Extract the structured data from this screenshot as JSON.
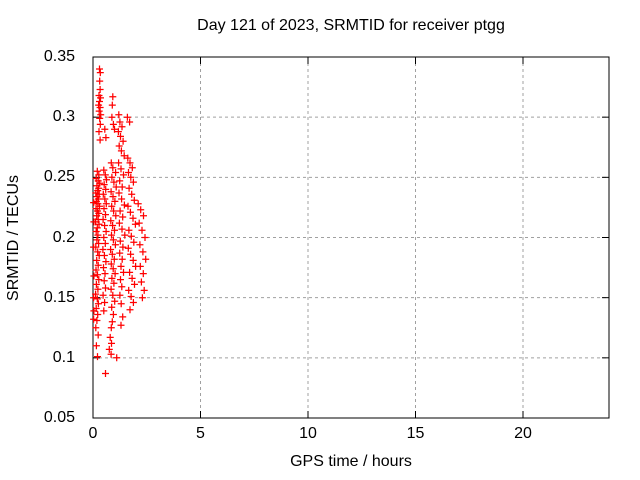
{
  "title": "Day 121 of 2023, SRMTID for receiver ptgg",
  "chart_data": {
    "type": "scatter",
    "title": "Day 121 of 2023, SRMTID for receiver ptgg",
    "xlabel": "GPS time / hours",
    "ylabel": "SRMTID / TECUs",
    "xlim": [
      0,
      24
    ],
    "ylim": [
      0.05,
      0.35
    ],
    "xticks": [
      0,
      5,
      10,
      15,
      20
    ],
    "xtick_labels": [
      "0",
      "5",
      "10",
      "15",
      "20"
    ],
    "yticks": [
      0.05,
      0.1,
      0.15,
      0.2,
      0.25,
      0.3,
      0.35
    ],
    "ytick_labels": [
      "0.05",
      "0.1",
      "0.15",
      "0.2",
      "0.25",
      "0.3",
      "0.35"
    ],
    "grid": true,
    "legend": "none",
    "marker": "plus",
    "marker_color": "#ff0000",
    "grid_color": "#a0a0a0",
    "axis_color": "#000000",
    "series": [
      {
        "name": "SRMTID",
        "points": [
          [
            0.3,
            0.34
          ],
          [
            0.34,
            0.337
          ],
          [
            0.31,
            0.33
          ],
          [
            0.33,
            0.323
          ],
          [
            0.28,
            0.318
          ],
          [
            0.35,
            0.316
          ],
          [
            0.3,
            0.313
          ],
          [
            0.26,
            0.31
          ],
          [
            0.33,
            0.308
          ],
          [
            0.29,
            0.305
          ],
          [
            0.36,
            0.302
          ],
          [
            0.31,
            0.299
          ],
          [
            0.34,
            0.294
          ],
          [
            0.28,
            0.288
          ],
          [
            0.33,
            0.281
          ],
          [
            0.2,
            0.255
          ],
          [
            0.27,
            0.252
          ],
          [
            0.15,
            0.249
          ],
          [
            0.24,
            0.247
          ],
          [
            0.31,
            0.245
          ],
          [
            0.18,
            0.243
          ],
          [
            0.26,
            0.241
          ],
          [
            0.22,
            0.239
          ],
          [
            0.13,
            0.237
          ],
          [
            0.29,
            0.236
          ],
          [
            0.19,
            0.234
          ],
          [
            0.25,
            0.232
          ],
          [
            0.16,
            0.23
          ],
          [
            0.23,
            0.228
          ],
          [
            0.3,
            0.226
          ],
          [
            0.14,
            0.224
          ],
          [
            0.21,
            0.222
          ],
          [
            0.27,
            0.22
          ],
          [
            0.17,
            0.218
          ],
          [
            0.24,
            0.215
          ],
          [
            0.12,
            0.213
          ],
          [
            0.28,
            0.211
          ],
          [
            0.2,
            0.208
          ],
          [
            0.15,
            0.205
          ],
          [
            0.23,
            0.202
          ],
          [
            0.18,
            0.198
          ],
          [
            0.26,
            0.195
          ],
          [
            0.13,
            0.192
          ],
          [
            0.22,
            0.188
          ],
          [
            0.29,
            0.185
          ],
          [
            0.17,
            0.181
          ],
          [
            0.24,
            0.177
          ],
          [
            0.14,
            0.173
          ],
          [
            0.21,
            0.169
          ],
          [
            0.27,
            0.165
          ],
          [
            0.16,
            0.161
          ],
          [
            0.23,
            0.157
          ],
          [
            0.12,
            0.153
          ],
          [
            0.2,
            0.149
          ],
          [
            0.25,
            0.145
          ],
          [
            0.15,
            0.141
          ],
          [
            0.22,
            0.136
          ],
          [
            0.18,
            0.131
          ],
          [
            0.13,
            0.125
          ],
          [
            0.24,
            0.119
          ],
          [
            0.16,
            0.11
          ],
          [
            0.21,
            0.101
          ],
          [
            0.03,
            0.229
          ],
          [
            0.04,
            0.213
          ],
          [
            0.03,
            0.192
          ],
          [
            0.04,
            0.168
          ],
          [
            0.03,
            0.15
          ],
          [
            0.04,
            0.139
          ],
          [
            0.03,
            0.132
          ],
          [
            0.55,
            0.29
          ],
          [
            0.6,
            0.283
          ],
          [
            0.5,
            0.256
          ],
          [
            0.57,
            0.252
          ],
          [
            0.63,
            0.248
          ],
          [
            0.52,
            0.244
          ],
          [
            0.59,
            0.24
          ],
          [
            0.48,
            0.236
          ],
          [
            0.55,
            0.232
          ],
          [
            0.62,
            0.228
          ],
          [
            0.51,
            0.224
          ],
          [
            0.58,
            0.219
          ],
          [
            0.47,
            0.215
          ],
          [
            0.54,
            0.21
          ],
          [
            0.61,
            0.205
          ],
          [
            0.5,
            0.2
          ],
          [
            0.57,
            0.195
          ],
          [
            0.46,
            0.19
          ],
          [
            0.53,
            0.185
          ],
          [
            0.6,
            0.18
          ],
          [
            0.49,
            0.175
          ],
          [
            0.56,
            0.17
          ],
          [
            0.52,
            0.164
          ],
          [
            0.58,
            0.158
          ],
          [
            0.47,
            0.152
          ],
          [
            0.54,
            0.146
          ],
          [
            0.5,
            0.139
          ],
          [
            0.58,
            0.087
          ],
          [
            0.92,
            0.317
          ],
          [
            0.9,
            0.31
          ],
          [
            0.88,
            0.3
          ],
          [
            0.95,
            0.294
          ],
          [
            1.0,
            0.29
          ],
          [
            0.85,
            0.262
          ],
          [
            0.92,
            0.258
          ],
          [
            1.05,
            0.254
          ],
          [
            0.88,
            0.25
          ],
          [
            0.97,
            0.246
          ],
          [
            1.08,
            0.242
          ],
          [
            0.84,
            0.238
          ],
          [
            0.93,
            0.234
          ],
          [
            1.02,
            0.23
          ],
          [
            0.87,
            0.226
          ],
          [
            0.96,
            0.222
          ],
          [
            1.06,
            0.218
          ],
          [
            0.83,
            0.214
          ],
          [
            0.91,
            0.21
          ],
          [
            1.0,
            0.206
          ],
          [
            0.86,
            0.202
          ],
          [
            0.95,
            0.198
          ],
          [
            1.04,
            0.194
          ],
          [
            0.82,
            0.19
          ],
          [
            0.9,
            0.186
          ],
          [
            0.99,
            0.182
          ],
          [
            0.85,
            0.178
          ],
          [
            0.94,
            0.174
          ],
          [
            1.03,
            0.17
          ],
          [
            0.88,
            0.166
          ],
          [
            0.97,
            0.162
          ],
          [
            0.84,
            0.157
          ],
          [
            0.92,
            0.152
          ],
          [
            1.01,
            0.147
          ],
          [
            0.87,
            0.142
          ],
          [
            0.95,
            0.136
          ],
          [
            0.9,
            0.13
          ],
          [
            0.85,
            0.125
          ],
          [
            0.8,
            0.117
          ],
          [
            0.86,
            0.112
          ],
          [
            0.76,
            0.107
          ],
          [
            0.84,
            0.103
          ],
          [
            1.1,
            0.1
          ],
          [
            1.2,
            0.302
          ],
          [
            1.25,
            0.296
          ],
          [
            1.35,
            0.292
          ],
          [
            1.18,
            0.288
          ],
          [
            1.28,
            0.284
          ],
          [
            1.4,
            0.28
          ],
          [
            1.22,
            0.276
          ],
          [
            1.32,
            0.272
          ],
          [
            1.45,
            0.268
          ],
          [
            1.19,
            0.262
          ],
          [
            1.3,
            0.257
          ],
          [
            1.42,
            0.252
          ],
          [
            1.24,
            0.247
          ],
          [
            1.36,
            0.242
          ],
          [
            1.21,
            0.237
          ],
          [
            1.33,
            0.232
          ],
          [
            1.46,
            0.227
          ],
          [
            1.26,
            0.222
          ],
          [
            1.38,
            0.217
          ],
          [
            1.23,
            0.212
          ],
          [
            1.35,
            0.207
          ],
          [
            1.48,
            0.202
          ],
          [
            1.27,
            0.197
          ],
          [
            1.39,
            0.192
          ],
          [
            1.24,
            0.187
          ],
          [
            1.36,
            0.182
          ],
          [
            1.3,
            0.176
          ],
          [
            1.42,
            0.171
          ],
          [
            1.28,
            0.165
          ],
          [
            1.34,
            0.159
          ],
          [
            1.25,
            0.152
          ],
          [
            1.31,
            0.145
          ],
          [
            1.38,
            0.134
          ],
          [
            1.3,
            0.127
          ],
          [
            1.6,
            0.3
          ],
          [
            1.7,
            0.296
          ],
          [
            1.62,
            0.266
          ],
          [
            1.72,
            0.262
          ],
          [
            1.83,
            0.258
          ],
          [
            1.65,
            0.254
          ],
          [
            1.76,
            0.25
          ],
          [
            1.88,
            0.246
          ],
          [
            1.68,
            0.241
          ],
          [
            1.8,
            0.236
          ],
          [
            1.92,
            0.231
          ],
          [
            1.63,
            0.226
          ],
          [
            1.74,
            0.221
          ],
          [
            1.86,
            0.216
          ],
          [
            1.97,
            0.211
          ],
          [
            1.67,
            0.206
          ],
          [
            1.78,
            0.201
          ],
          [
            1.9,
            0.196
          ],
          [
            1.64,
            0.191
          ],
          [
            1.75,
            0.186
          ],
          [
            1.87,
            0.181
          ],
          [
            1.98,
            0.176
          ],
          [
            1.7,
            0.171
          ],
          [
            1.82,
            0.166
          ],
          [
            1.93,
            0.161
          ],
          [
            1.66,
            0.156
          ],
          [
            1.77,
            0.151
          ],
          [
            1.88,
            0.146
          ],
          [
            1.72,
            0.14
          ],
          [
            2.1,
            0.228
          ],
          [
            2.22,
            0.223
          ],
          [
            2.35,
            0.218
          ],
          [
            2.15,
            0.212
          ],
          [
            2.28,
            0.206
          ],
          [
            2.42,
            0.2
          ],
          [
            2.18,
            0.194
          ],
          [
            2.32,
            0.188
          ],
          [
            2.45,
            0.182
          ],
          [
            2.2,
            0.176
          ],
          [
            2.34,
            0.17
          ],
          [
            2.25,
            0.163
          ],
          [
            2.38,
            0.156
          ],
          [
            2.3,
            0.15
          ]
        ]
      }
    ]
  }
}
